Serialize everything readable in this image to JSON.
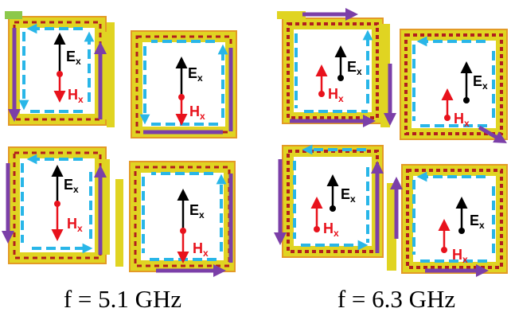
{
  "figure": {
    "panels": [
      {
        "caption": "f = 5.1 GHz",
        "cells": [
          {
            "e_label": "E",
            "e_sub": "x",
            "h_label": "H",
            "h_sub": "x",
            "h_dir": "down"
          },
          {
            "e_label": "E",
            "e_sub": "x",
            "h_label": "H",
            "h_sub": "x",
            "h_dir": "down"
          },
          {
            "e_label": "E",
            "e_sub": "x",
            "h_label": "H",
            "h_sub": "x",
            "h_dir": "down"
          },
          {
            "e_label": "E",
            "e_sub": "x",
            "h_label": "H",
            "h_sub": "x",
            "h_dir": "down"
          }
        ]
      },
      {
        "caption": "f = 6.3 GHz",
        "cells": [
          {
            "e_label": "E",
            "e_sub": "x",
            "h_label": "H",
            "h_sub": "x",
            "h_dir": "up"
          },
          {
            "e_label": "E",
            "e_sub": "x",
            "h_label": "H",
            "h_sub": "x",
            "h_dir": "up"
          },
          {
            "e_label": "E",
            "e_sub": "x",
            "h_label": "H",
            "h_sub": "x",
            "h_dir": "up"
          },
          {
            "e_label": "E",
            "e_sub": "x",
            "h_label": "H",
            "h_sub": "x",
            "h_dir": "up"
          }
        ]
      }
    ],
    "colors": {
      "e_field": "#000000",
      "h_field": "#e8121c",
      "current_blue": "#29b6e8",
      "current_purple": "#7b3fa8",
      "ring_yellow": "#e0d422",
      "ring_orange": "#e39a26",
      "ring_red": "#b21e1e",
      "ring_green": "#8cc84b"
    }
  }
}
